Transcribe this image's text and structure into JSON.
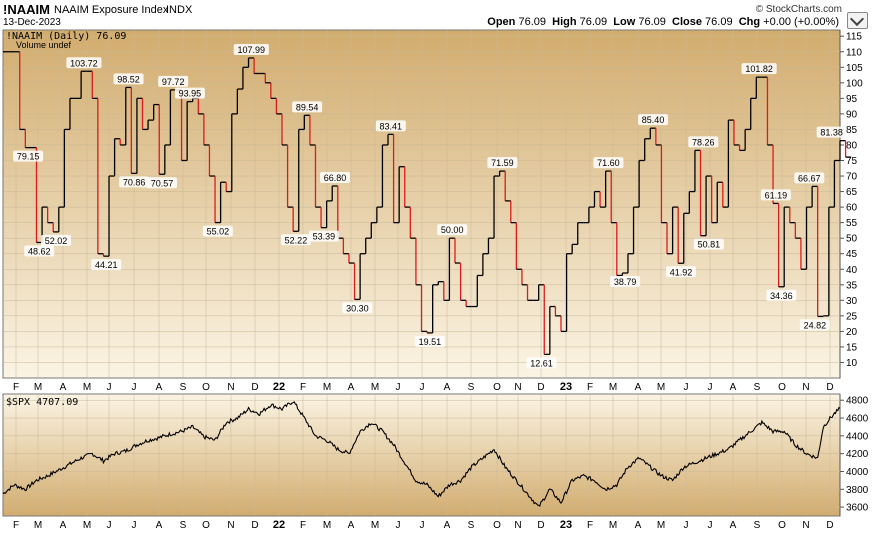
{
  "header": {
    "symbol": "!NAAIM",
    "name": "NAAIM Exposure Index",
    "exchange": "INDX",
    "date": "13-Dec-2023",
    "credit": "© StockCharts.com",
    "open_label": "Open",
    "open": "76.09",
    "high_label": "High",
    "high": "76.09",
    "low_label": "Low",
    "low": "76.09",
    "close_label": "Close",
    "close": "76.09",
    "chg_label": "Chg",
    "chg": "+0.00 (+0.00%)"
  },
  "panel_top": {
    "legend": "!NAAIM (Daily) 76.09",
    "sub_legend": "Volume undef"
  },
  "panel_bottom": {
    "legend": "$SPX 4707.09"
  },
  "colors": {
    "up": "#000000",
    "down": "#d91c1c",
    "gradient_top": "#d2ac6e",
    "gradient_bottom": "#fbf4e4",
    "grid": "#c8b898"
  },
  "chart_data": [
    {
      "type": "line",
      "title": "!NAAIM (Daily) 76.09",
      "ylim": [
        5,
        117
      ],
      "y_ticks": [
        10,
        15,
        20,
        25,
        30,
        35,
        40,
        45,
        50,
        55,
        60,
        65,
        70,
        75,
        80,
        85,
        90,
        95,
        100,
        105,
        110,
        115
      ],
      "x_ticks": [
        "F",
        "M",
        "A",
        "M",
        "J",
        "J",
        "A",
        "S",
        "O",
        "N",
        "D",
        "22",
        "F",
        "M",
        "A",
        "M",
        "J",
        "J",
        "A",
        "S",
        "O",
        "N",
        "D",
        "23",
        "F",
        "M",
        "A",
        "M",
        "J",
        "J",
        "A",
        "S",
        "O",
        "N",
        "D"
      ],
      "x_range_weeks": 150,
      "week_values": [
        110,
        110,
        110,
        85,
        79.15,
        79.15,
        48.62,
        60,
        55,
        52.02,
        60,
        85,
        95,
        95,
        103.72,
        103.72,
        95,
        45,
        44.21,
        70,
        82,
        80,
        98.52,
        70.86,
        95,
        85,
        88,
        93,
        70.57,
        80,
        97.72,
        97.72,
        75,
        93.95,
        95,
        90,
        80,
        70,
        55.02,
        68,
        65,
        90,
        98,
        105,
        107.99,
        103,
        103,
        100,
        95,
        90,
        80,
        60,
        52.22,
        85,
        89.54,
        80,
        60,
        53.39,
        62,
        66.8,
        50,
        45,
        42,
        30.3,
        45,
        50,
        55,
        60,
        80,
        83.41,
        55,
        73,
        60,
        50,
        35,
        20,
        19.51,
        35,
        36,
        30,
        50,
        42,
        30,
        28,
        28,
        38,
        45,
        50,
        70,
        71.59,
        62,
        55,
        40,
        35,
        30,
        30,
        35,
        12.61,
        28,
        25,
        20,
        45,
        48,
        55,
        55,
        60,
        65,
        60,
        71.6,
        55,
        38,
        38.79,
        45,
        60,
        75,
        82,
        85.4,
        80,
        55,
        45,
        60,
        41.92,
        58,
        65,
        78.26,
        50.81,
        70,
        55,
        68,
        60,
        88,
        80,
        78.26,
        85,
        95,
        101.82,
        101.82,
        80,
        61.19,
        34.36,
        60,
        55,
        50,
        40,
        60,
        66.67,
        24.82,
        25,
        60,
        75,
        81.38,
        76.09
      ],
      "price_labels": [
        {
          "week": 4,
          "value": "79.15",
          "pos": "below"
        },
        {
          "week": 6,
          "value": "48.62",
          "pos": "below"
        },
        {
          "week": 9,
          "value": "52.02",
          "pos": "below"
        },
        {
          "week": 14,
          "value": "103.72",
          "pos": "above"
        },
        {
          "week": 18,
          "value": "44.21",
          "pos": "below"
        },
        {
          "week": 22,
          "value": "98.52",
          "pos": "above"
        },
        {
          "week": 23,
          "value": "70.86",
          "pos": "below"
        },
        {
          "week": 28,
          "value": "70.57",
          "pos": "below"
        },
        {
          "week": 30,
          "value": "97.72",
          "pos": "above"
        },
        {
          "week": 33,
          "value": "93.95",
          "pos": "above"
        },
        {
          "week": 38,
          "value": "55.02",
          "pos": "below"
        },
        {
          "week": 44,
          "value": "107.99",
          "pos": "above"
        },
        {
          "week": 52,
          "value": "52.22",
          "pos": "below"
        },
        {
          "week": 54,
          "value": "89.54",
          "pos": "above"
        },
        {
          "week": 57,
          "value": "53.39",
          "pos": "below"
        },
        {
          "week": 59,
          "value": "66.80",
          "pos": "above"
        },
        {
          "week": 63,
          "value": "30.30",
          "pos": "below"
        },
        {
          "week": 69,
          "value": "83.41",
          "pos": "above"
        },
        {
          "week": 76,
          "value": "19.51",
          "pos": "below"
        },
        {
          "week": 80,
          "value": "50.00",
          "pos": "above"
        },
        {
          "week": 89,
          "value": "71.59",
          "pos": "above"
        },
        {
          "week": 96,
          "value": "12.61",
          "pos": "below"
        },
        {
          "week": 108,
          "value": "71.60",
          "pos": "above"
        },
        {
          "week": 111,
          "value": "38.79",
          "pos": "below"
        },
        {
          "week": 116,
          "value": "85.40",
          "pos": "above"
        },
        {
          "week": 121,
          "value": "41.92",
          "pos": "below"
        },
        {
          "week": 125,
          "value": "78.26",
          "pos": "above"
        },
        {
          "week": 126,
          "value": "50.81",
          "pos": "below"
        },
        {
          "week": 135,
          "value": "101.82",
          "pos": "above"
        },
        {
          "week": 138,
          "value": "61.19",
          "pos": "above"
        },
        {
          "week": 139,
          "value": "34.36",
          "pos": "below"
        },
        {
          "week": 144,
          "value": "66.67",
          "pos": "above"
        },
        {
          "week": 145,
          "value": "24.82",
          "pos": "below"
        },
        {
          "week": 148,
          "value": "81.38",
          "pos": "above"
        }
      ]
    },
    {
      "type": "line",
      "title": "$SPX 4707.09",
      "ylim": [
        3500,
        4870
      ],
      "y_ticks": [
        3600,
        3800,
        4000,
        4200,
        4400,
        4600,
        4800
      ],
      "x_ticks": [
        "F",
        "M",
        "A",
        "M",
        "J",
        "J",
        "A",
        "S",
        "O",
        "N",
        "D",
        "22",
        "F",
        "M",
        "A",
        "M",
        "J",
        "J",
        "A",
        "S",
        "O",
        "N",
        "D",
        "23",
        "F",
        "M",
        "A",
        "M",
        "J",
        "J",
        "A",
        "S",
        "O",
        "N",
        "D"
      ],
      "x_range_weeks": 150,
      "anchors": [
        [
          0,
          3750
        ],
        [
          2,
          3850
        ],
        [
          4,
          3800
        ],
        [
          6,
          3900
        ],
        [
          8,
          3950
        ],
        [
          11,
          4050
        ],
        [
          14,
          4150
        ],
        [
          16,
          4200
        ],
        [
          18,
          4120
        ],
        [
          20,
          4200
        ],
        [
          22,
          4230
        ],
        [
          24,
          4300
        ],
        [
          26,
          4350
        ],
        [
          28,
          4380
        ],
        [
          30,
          4420
        ],
        [
          32,
          4450
        ],
        [
          34,
          4500
        ],
        [
          36,
          4390
        ],
        [
          38,
          4350
        ],
        [
          40,
          4550
        ],
        [
          42,
          4600
        ],
        [
          44,
          4700
        ],
        [
          46,
          4650
        ],
        [
          48,
          4750
        ],
        [
          50,
          4700
        ],
        [
          52,
          4790
        ],
        [
          54,
          4600
        ],
        [
          56,
          4400
        ],
        [
          58,
          4350
        ],
        [
          60,
          4250
        ],
        [
          62,
          4200
        ],
        [
          64,
          4450
        ],
        [
          66,
          4550
        ],
        [
          68,
          4450
        ],
        [
          70,
          4300
        ],
        [
          72,
          4100
        ],
        [
          74,
          3900
        ],
        [
          76,
          3850
        ],
        [
          78,
          3720
        ],
        [
          80,
          3850
        ],
        [
          82,
          3900
        ],
        [
          84,
          4050
        ],
        [
          86,
          4150
        ],
        [
          88,
          4250
        ],
        [
          90,
          4050
        ],
        [
          92,
          3900
        ],
        [
          94,
          3750
        ],
        [
          96,
          3600
        ],
        [
          98,
          3800
        ],
        [
          100,
          3650
        ],
        [
          102,
          3900
        ],
        [
          104,
          3950
        ],
        [
          106,
          3900
        ],
        [
          108,
          3800
        ],
        [
          110,
          3850
        ],
        [
          112,
          4050
        ],
        [
          114,
          4150
        ],
        [
          116,
          4050
        ],
        [
          118,
          3950
        ],
        [
          120,
          3900
        ],
        [
          122,
          4050
        ],
        [
          124,
          4100
        ],
        [
          126,
          4150
        ],
        [
          128,
          4200
        ],
        [
          130,
          4250
        ],
        [
          132,
          4350
        ],
        [
          134,
          4450
        ],
        [
          136,
          4550
        ],
        [
          138,
          4450
        ],
        [
          140,
          4450
        ],
        [
          142,
          4300
        ],
        [
          144,
          4200
        ],
        [
          146,
          4150
        ],
        [
          147,
          4500
        ],
        [
          148,
          4580
        ],
        [
          149,
          4650
        ],
        [
          150,
          4707
        ]
      ]
    }
  ]
}
